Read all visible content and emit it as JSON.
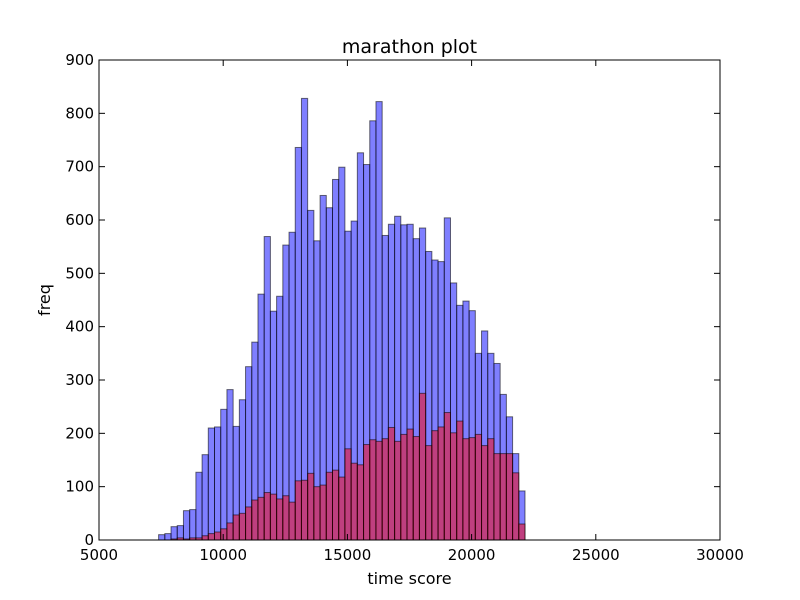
{
  "chart_data": {
    "type": "bar",
    "title": "marathon plot",
    "xlabel": "time score",
    "ylabel": "freq",
    "xlim": [
      5000,
      30000
    ],
    "ylim": [
      0,
      900
    ],
    "xticks": [
      5000,
      10000,
      15000,
      20000,
      25000,
      30000
    ],
    "yticks": [
      0,
      100,
      200,
      300,
      400,
      500,
      600,
      700,
      800,
      900
    ],
    "bin_start": 7400,
    "bin_width": 250,
    "grid": false,
    "series": [
      {
        "color": "#0000ff",
        "alpha": 0.5,
        "values": [
          10,
          12,
          25,
          27,
          55,
          57,
          127,
          160,
          210,
          212,
          245,
          282,
          213,
          263,
          325,
          371,
          461,
          569,
          429,
          457,
          553,
          577,
          736,
          828,
          618,
          561,
          646,
          623,
          676,
          699,
          579,
          598,
          726,
          704,
          786,
          822,
          571,
          592,
          607,
          591,
          592,
          565,
          585,
          541,
          525,
          522,
          604,
          482,
          440,
          448,
          430,
          350,
          392,
          350,
          331,
          273,
          231,
          162,
          92
        ]
      },
      {
        "color": "#ff0000",
        "alpha": 0.5,
        "values": [
          0,
          0,
          2,
          4,
          2,
          4,
          4,
          8,
          12,
          15,
          21,
          32,
          47,
          50,
          62,
          75,
          80,
          89,
          86,
          77,
          83,
          71,
          111,
          112,
          125,
          100,
          103,
          127,
          131,
          118,
          171,
          144,
          141,
          179,
          188,
          185,
          190,
          211,
          185,
          198,
          208,
          194,
          275,
          177,
          205,
          212,
          239,
          201,
          223,
          190,
          192,
          198,
          177,
          190,
          162,
          162,
          162,
          126,
          30
        ]
      }
    ]
  }
}
